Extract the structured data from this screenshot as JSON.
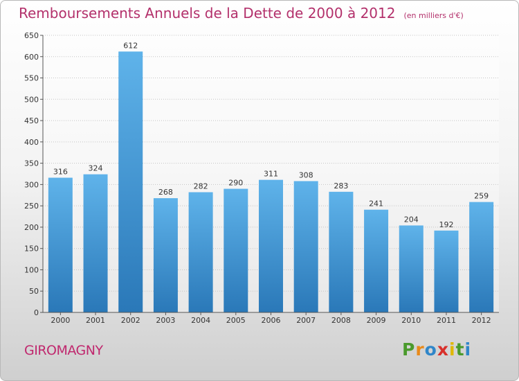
{
  "chart_data": {
    "type": "bar",
    "title": "Remboursements Annuels de la Dette de 2000 à 2012",
    "subtitle": "(en milliers d'€)",
    "categories": [
      "2000",
      "2001",
      "2002",
      "2003",
      "2004",
      "2005",
      "2006",
      "2007",
      "2008",
      "2009",
      "2010",
      "2011",
      "2012"
    ],
    "values": [
      316,
      324,
      612,
      268,
      282,
      290,
      311,
      308,
      283,
      241,
      204,
      192,
      259
    ],
    "yticks": [
      0,
      50,
      100,
      150,
      200,
      250,
      300,
      350,
      400,
      450,
      500,
      550,
      600,
      650
    ],
    "ylim": [
      0,
      650
    ],
    "xlabel": "",
    "ylabel": "",
    "grid": true
  },
  "footer": {
    "city": "GIROMAGNY",
    "brand": [
      "P",
      "r",
      "o",
      "x",
      "i",
      "t",
      "i"
    ]
  },
  "colors": {
    "title": "#b3306b",
    "bar_top": "#5fb3ea",
    "bar_bottom": "#2a78b8",
    "brand": [
      "#4a9a2c",
      "#e88a1a",
      "#2f86c9",
      "#d8302b",
      "#e0b800",
      "#4a9a2c",
      "#2f86c9"
    ]
  }
}
